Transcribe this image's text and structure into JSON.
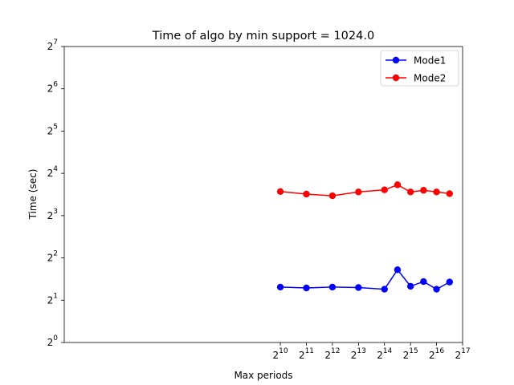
{
  "chart_data": {
    "type": "line",
    "title": "Time of algo by min support = 1024.0",
    "xlabel": "Max periods",
    "ylabel": "Time (sec)",
    "xscale": "log2",
    "yscale": "log2",
    "xlim": [
      1.7,
      17.0
    ],
    "ylim": [
      0,
      7
    ],
    "x_ticks": [
      {
        "base": "2",
        "exp": "10",
        "value": 10
      },
      {
        "base": "2",
        "exp": "11",
        "value": 11
      },
      {
        "base": "2",
        "exp": "12",
        "value": 12
      },
      {
        "base": "2",
        "exp": "13",
        "value": 13
      },
      {
        "base": "2",
        "exp": "14",
        "value": 14
      },
      {
        "base": "2",
        "exp": "15",
        "value": 15
      },
      {
        "base": "2",
        "exp": "16",
        "value": 16
      },
      {
        "base": "2",
        "exp": "17",
        "value": 17
      }
    ],
    "y_ticks": [
      {
        "base": "2",
        "exp": "0",
        "value": 0
      },
      {
        "base": "2",
        "exp": "1",
        "value": 1
      },
      {
        "base": "2",
        "exp": "2",
        "value": 2
      },
      {
        "base": "2",
        "exp": "3",
        "value": 3
      },
      {
        "base": "2",
        "exp": "4",
        "value": 4
      },
      {
        "base": "2",
        "exp": "5",
        "value": 5
      },
      {
        "base": "2",
        "exp": "6",
        "value": 6
      },
      {
        "base": "2",
        "exp": "7",
        "value": 7
      }
    ],
    "x_log2": [
      10,
      11,
      12,
      13,
      14,
      14.5,
      15,
      15.5,
      16,
      16.5
    ],
    "series": [
      {
        "name": "Mode1",
        "color": "#0000ff",
        "y_log2": [
          1.31,
          1.29,
          1.31,
          1.3,
          1.26,
          1.72,
          1.33,
          1.44,
          1.26,
          1.43
        ]
      },
      {
        "name": "Mode2",
        "color": "#ff0000",
        "y_log2": [
          3.57,
          3.51,
          3.47,
          3.56,
          3.61,
          3.73,
          3.56,
          3.6,
          3.56,
          3.52
        ]
      }
    ],
    "grid": false,
    "legend": "top-right"
  }
}
